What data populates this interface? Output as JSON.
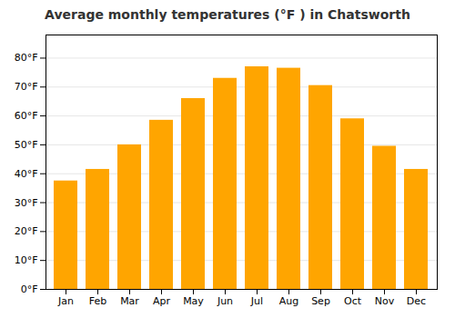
{
  "chart_data": {
    "type": "bar",
    "title": "Average monthly temperatures (°F ) in Chatsworth",
    "categories": [
      "Jan",
      "Feb",
      "Mar",
      "Apr",
      "May",
      "Jun",
      "Jul",
      "Aug",
      "Sep",
      "Oct",
      "Nov",
      "Dec"
    ],
    "values": [
      37.5,
      41.5,
      50.0,
      58.5,
      66.0,
      73.0,
      77.0,
      76.5,
      70.5,
      59.0,
      49.5,
      41.5
    ],
    "color": "#FFA500",
    "ylim": [
      0,
      88
    ],
    "yticks": [
      {
        "value": 0,
        "label": "0°F"
      },
      {
        "value": 10,
        "label": "10°F"
      },
      {
        "value": 20,
        "label": "20°F"
      },
      {
        "value": 30,
        "label": "30°F"
      },
      {
        "value": 40,
        "label": "40°F"
      },
      {
        "value": 50,
        "label": "50°F"
      },
      {
        "value": 60,
        "label": "60°F"
      },
      {
        "value": 70,
        "label": "70°F"
      },
      {
        "value": 80,
        "label": "80°F"
      }
    ],
    "grid": true
  }
}
